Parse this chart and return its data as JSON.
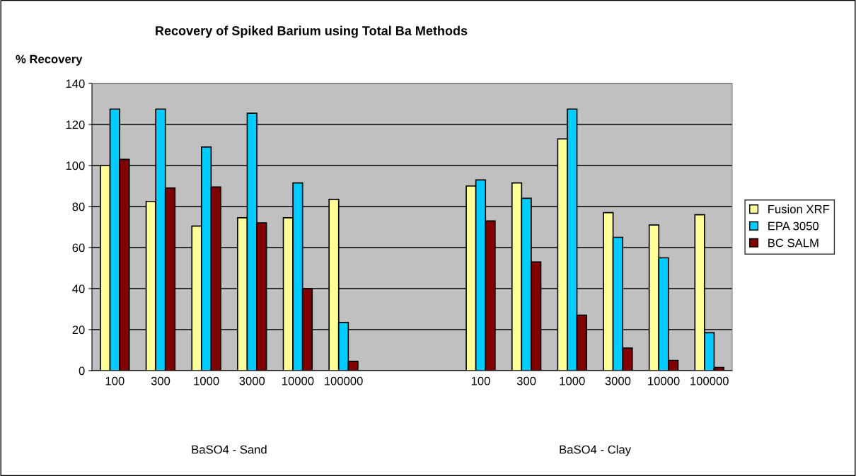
{
  "chart_data": {
    "type": "bar",
    "title": "Recovery of Spiked Barium using Total Ba Methods",
    "ylabel": "% Recovery",
    "categories": [
      "100",
      "300",
      "1000",
      "3000",
      "10000",
      "100000",
      null,
      null,
      "100",
      "300",
      "1000",
      "3000",
      "10000",
      "100000"
    ],
    "series": [
      {
        "name": "Fusion XRF",
        "color": "#ffff99",
        "values": [
          100,
          82.5,
          70.5,
          74.5,
          74.5,
          83.5,
          null,
          null,
          90,
          91.5,
          113,
          77,
          71,
          76
        ]
      },
      {
        "name": "EPA 3050",
        "color": "#00ccff",
        "values": [
          127.5,
          127.5,
          109,
          125.5,
          91.5,
          23.5,
          null,
          null,
          93,
          84,
          127.5,
          65,
          55,
          18.5
        ]
      },
      {
        "name": "BC SALM",
        "color": "#800000",
        "values": [
          103,
          89,
          89.5,
          72,
          40,
          4.5,
          null,
          null,
          73,
          53,
          27,
          11,
          5,
          1.5
        ]
      }
    ],
    "ylim": [
      0,
      140
    ],
    "yticks": [
      0,
      20,
      40,
      60,
      80,
      100,
      120,
      140
    ],
    "grid": "y",
    "legend": "right",
    "annotations": [
      "BaSO4 - Sand",
      "BaSO4 - Clay"
    ]
  }
}
